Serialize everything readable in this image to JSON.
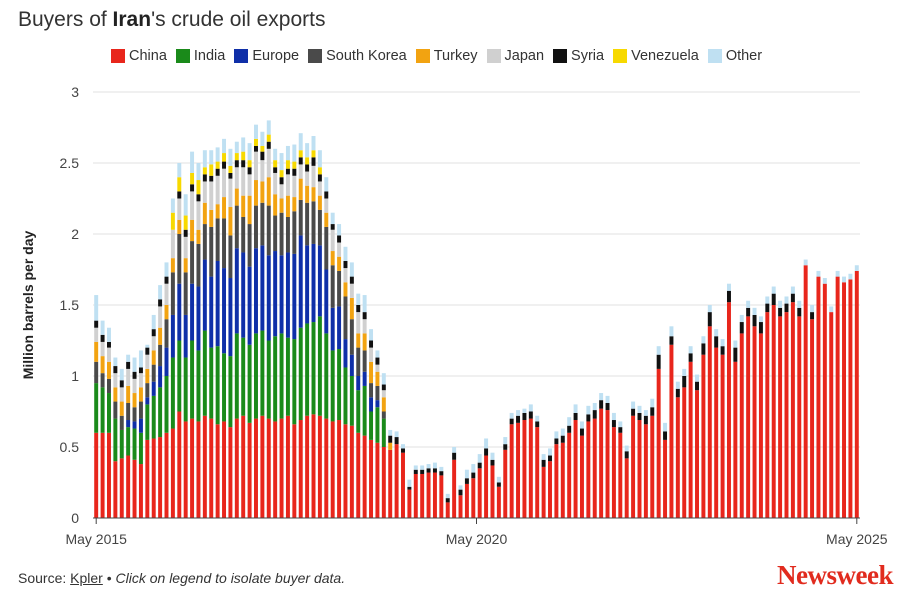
{
  "title": {
    "prefix": "Buyers of ",
    "bold": "Iran",
    "suffix": "'s crude oil exports"
  },
  "footer": {
    "source_label": "Source: ",
    "source_link": "Kpler",
    "bullet": " • ",
    "note": "Click on legend to isolate buyer data."
  },
  "brand": "Newsweek",
  "chart_data": {
    "type": "bar",
    "stacked": true,
    "xlabel": "",
    "ylabel": "Million barrels per day",
    "ylim": [
      0,
      3
    ],
    "yticks": [
      "0",
      "0.5",
      "1",
      "1.5",
      "2",
      "2.5",
      "3"
    ],
    "xtick_labels": [
      "May 2015",
      "May 2020",
      "May 2025"
    ],
    "x_start": "2015-05",
    "x_end": "2025-05",
    "grid": true,
    "legend_position": "top",
    "series": [
      {
        "name": "China",
        "color": "#e8261c",
        "values": [
          0.6,
          0.6,
          0.6,
          0.4,
          0.42,
          0.44,
          0.41,
          0.38,
          0.55,
          0.56,
          0.57,
          0.6,
          0.63,
          0.75,
          0.68,
          0.7,
          0.68,
          0.72,
          0.7,
          0.66,
          0.68,
          0.64,
          0.7,
          0.72,
          0.67,
          0.7,
          0.72,
          0.7,
          0.68,
          0.7,
          0.72,
          0.66,
          0.69,
          0.72,
          0.73,
          0.72,
          0.7,
          0.68,
          0.69,
          0.66,
          0.65,
          0.6,
          0.58,
          0.55,
          0.53,
          0.5,
          0.48,
          0.52,
          0.46,
          0.2,
          0.31,
          0.31,
          0.32,
          0.32,
          0.3,
          0.11,
          0.41,
          0.16,
          0.24,
          0.28,
          0.35,
          0.44,
          0.37,
          0.22,
          0.48,
          0.66,
          0.67,
          0.69,
          0.7,
          0.64,
          0.36,
          0.4,
          0.52,
          0.53,
          0.6,
          0.69,
          0.58,
          0.68,
          0.7,
          0.77,
          0.76,
          0.64,
          0.6,
          0.42,
          0.72,
          0.69,
          0.66,
          0.72,
          1.05,
          0.55,
          1.22,
          0.85,
          0.92,
          1.1,
          0.9,
          1.15,
          1.35,
          1.2,
          1.15,
          1.52,
          1.1,
          1.3,
          1.42,
          1.35,
          1.3,
          1.45,
          1.5,
          1.42,
          1.45,
          1.52,
          1.42,
          1.78,
          1.4,
          1.7,
          1.65,
          1.45,
          1.7,
          1.66,
          1.68,
          1.74
        ]
      },
      {
        "name": "India",
        "color": "#1a8a1a",
        "values": [
          0.35,
          0.32,
          0.28,
          0.3,
          0.2,
          0.2,
          0.22,
          0.22,
          0.25,
          0.3,
          0.35,
          0.4,
          0.5,
          0.5,
          0.45,
          0.55,
          0.5,
          0.6,
          0.5,
          0.55,
          0.48,
          0.5,
          0.6,
          0.55,
          0.55,
          0.6,
          0.6,
          0.55,
          0.6,
          0.6,
          0.55,
          0.6,
          0.65,
          0.65,
          0.65,
          0.7,
          0.6,
          0.5,
          0.5,
          0.4,
          0.35,
          0.3,
          0.35,
          0.2,
          0.25,
          0.2,
          0,
          0,
          0,
          0,
          0,
          0,
          0,
          0,
          0,
          0,
          0,
          0,
          0,
          0,
          0,
          0,
          0,
          0,
          0,
          0,
          0,
          0,
          0,
          0,
          0,
          0,
          0,
          0,
          0,
          0,
          0,
          0,
          0,
          0,
          0,
          0,
          0,
          0,
          0,
          0,
          0,
          0,
          0,
          0,
          0,
          0,
          0,
          0,
          0,
          0,
          0,
          0,
          0,
          0,
          0,
          0,
          0,
          0,
          0,
          0,
          0,
          0,
          0,
          0,
          0,
          0,
          0,
          0,
          0,
          0,
          0,
          0,
          0,
          0
        ]
      },
      {
        "name": "Europe",
        "color": "#0f2fa8",
        "values": [
          0,
          0,
          0,
          0,
          0,
          0.05,
          0.05,
          0.1,
          0.05,
          0.1,
          0.15,
          0.2,
          0.3,
          0.4,
          0.3,
          0.4,
          0.45,
          0.5,
          0.5,
          0.6,
          0.6,
          0.55,
          0.6,
          0.6,
          0.55,
          0.6,
          0.6,
          0.6,
          0.6,
          0.55,
          0.6,
          0.6,
          0.65,
          0.55,
          0.55,
          0.5,
          0.45,
          0.3,
          0.3,
          0.2,
          0.15,
          0.1,
          0.1,
          0.1,
          0.05,
          0,
          0,
          0,
          0,
          0,
          0,
          0,
          0,
          0,
          0,
          0,
          0,
          0,
          0,
          0,
          0,
          0,
          0,
          0,
          0,
          0,
          0,
          0,
          0,
          0,
          0,
          0,
          0,
          0,
          0,
          0,
          0,
          0,
          0,
          0,
          0,
          0,
          0,
          0,
          0,
          0,
          0,
          0,
          0,
          0,
          0,
          0,
          0,
          0,
          0,
          0,
          0,
          0,
          0,
          0,
          0,
          0,
          0,
          0,
          0,
          0,
          0,
          0,
          0,
          0,
          0,
          0,
          0,
          0,
          0,
          0,
          0,
          0,
          0,
          0
        ]
      },
      {
        "name": "South Korea",
        "color": "#4a4a4a",
        "values": [
          0.15,
          0.1,
          0.1,
          0.12,
          0.1,
          0.12,
          0.1,
          0.12,
          0.1,
          0.12,
          0.15,
          0.2,
          0.3,
          0.35,
          0.3,
          0.3,
          0.3,
          0.25,
          0.35,
          0.3,
          0.35,
          0.3,
          0.3,
          0.25,
          0.3,
          0.3,
          0.3,
          0.35,
          0.25,
          0.3,
          0.25,
          0.3,
          0.25,
          0.3,
          0.3,
          0.25,
          0.3,
          0.3,
          0.25,
          0.3,
          0.25,
          0.2,
          0.15,
          0.1,
          0.1,
          0.05,
          0,
          0,
          0,
          0,
          0,
          0,
          0,
          0,
          0,
          0,
          0,
          0,
          0,
          0,
          0,
          0,
          0,
          0,
          0,
          0,
          0,
          0,
          0,
          0,
          0,
          0,
          0,
          0,
          0,
          0,
          0,
          0,
          0,
          0,
          0,
          0,
          0,
          0,
          0,
          0,
          0,
          0,
          0,
          0,
          0,
          0,
          0,
          0,
          0,
          0,
          0,
          0,
          0,
          0,
          0,
          0,
          0,
          0,
          0,
          0,
          0,
          0,
          0,
          0,
          0,
          0,
          0,
          0,
          0,
          0,
          0,
          0,
          0,
          0
        ]
      },
      {
        "name": "Turkey",
        "color": "#f2a311",
        "values": [
          0.14,
          0.12,
          0.12,
          0.1,
          0.1,
          0.12,
          0.1,
          0.1,
          0.1,
          0.1,
          0.12,
          0.1,
          0.1,
          0.1,
          0.1,
          0.15,
          0.1,
          0.15,
          0.12,
          0.1,
          0.15,
          0.2,
          0.12,
          0.15,
          0.2,
          0.18,
          0.15,
          0.2,
          0.15,
          0.1,
          0.15,
          0.1,
          0.15,
          0.12,
          0.1,
          0.1,
          0.1,
          0.1,
          0.1,
          0.1,
          0.15,
          0.1,
          0.12,
          0.15,
          0.1,
          0.1,
          0.05,
          0,
          0,
          0,
          0,
          0,
          0,
          0,
          0,
          0,
          0,
          0,
          0,
          0,
          0,
          0,
          0,
          0,
          0,
          0,
          0,
          0,
          0,
          0,
          0,
          0,
          0,
          0,
          0,
          0,
          0,
          0,
          0,
          0,
          0,
          0,
          0,
          0,
          0,
          0,
          0,
          0,
          0,
          0,
          0,
          0,
          0,
          0,
          0,
          0,
          0,
          0,
          0,
          0,
          0,
          0,
          0,
          0,
          0,
          0,
          0,
          0,
          0,
          0,
          0,
          0,
          0,
          0,
          0,
          0,
          0,
          0,
          0,
          0,
          0,
          0
        ]
      },
      {
        "name": "Japan",
        "color": "#d0d0d0",
        "values": [
          0.1,
          0.1,
          0.1,
          0.1,
          0.1,
          0.12,
          0.1,
          0.1,
          0.1,
          0.1,
          0.15,
          0.15,
          0.2,
          0.15,
          0.15,
          0.2,
          0.2,
          0.15,
          0.2,
          0.2,
          0.2,
          0.2,
          0.15,
          0.2,
          0.15,
          0.2,
          0.15,
          0.2,
          0.15,
          0.1,
          0.15,
          0.15,
          0.1,
          0.1,
          0.15,
          0.1,
          0.1,
          0.15,
          0.1,
          0.1,
          0.1,
          0.15,
          0.1,
          0.1,
          0.05,
          0.05,
          0,
          0,
          0,
          0,
          0,
          0,
          0,
          0,
          0,
          0,
          0,
          0,
          0,
          0,
          0,
          0,
          0,
          0,
          0,
          0,
          0,
          0,
          0,
          0,
          0,
          0,
          0,
          0,
          0,
          0,
          0,
          0,
          0,
          0,
          0,
          0,
          0,
          0,
          0,
          0,
          0,
          0,
          0,
          0,
          0,
          0,
          0,
          0,
          0,
          0,
          0,
          0,
          0,
          0,
          0,
          0,
          0,
          0,
          0,
          0,
          0,
          0,
          0,
          0,
          0,
          0,
          0,
          0,
          0,
          0,
          0,
          0,
          0,
          0
        ]
      },
      {
        "name": "Syria",
        "color": "#111111",
        "values": [
          0.05,
          0.05,
          0.04,
          0.05,
          0.05,
          0.05,
          0.05,
          0.04,
          0.05,
          0.05,
          0.05,
          0.05,
          0,
          0.05,
          0.05,
          0.05,
          0.05,
          0.05,
          0.04,
          0.05,
          0.05,
          0.04,
          0.05,
          0.05,
          0.05,
          0.04,
          0.06,
          0.05,
          0.04,
          0.05,
          0.04,
          0.05,
          0.05,
          0.05,
          0.06,
          0.05,
          0.05,
          0.04,
          0.05,
          0.05,
          0.05,
          0.05,
          0.05,
          0.05,
          0.05,
          0.04,
          0.05,
          0.05,
          0.03,
          0.02,
          0.03,
          0.03,
          0.03,
          0.03,
          0.03,
          0.03,
          0.05,
          0.04,
          0.04,
          0.04,
          0.04,
          0.05,
          0.04,
          0.03,
          0.04,
          0.04,
          0.05,
          0.05,
          0.05,
          0.04,
          0.05,
          0.04,
          0.04,
          0.05,
          0.05,
          0.05,
          0.05,
          0.05,
          0.06,
          0.06,
          0.05,
          0.05,
          0.04,
          0.05,
          0.05,
          0.05,
          0.06,
          0.06,
          0.1,
          0.06,
          0.06,
          0.06,
          0.08,
          0.06,
          0.06,
          0.08,
          0.1,
          0.08,
          0.06,
          0.08,
          0.1,
          0.08,
          0.06,
          0.08,
          0.08,
          0.06,
          0.08,
          0.06,
          0.06,
          0.06,
          0.06,
          0,
          0.05,
          0,
          0,
          0,
          0,
          0,
          0,
          0
        ]
      },
      {
        "name": "Venezuela",
        "color": "#f7d900",
        "values": [
          0,
          0,
          0,
          0,
          0,
          0,
          0,
          0,
          0,
          0,
          0,
          0,
          0.12,
          0.1,
          0.1,
          0.08,
          0.1,
          0.05,
          0.08,
          0.05,
          0.06,
          0.05,
          0.05,
          0.06,
          0.05,
          0.05,
          0.04,
          0.05,
          0.05,
          0.05,
          0.06,
          0.05,
          0.05,
          0.05,
          0.05,
          0.05,
          0,
          0,
          0,
          0,
          0,
          0,
          0,
          0,
          0,
          0,
          0,
          0,
          0,
          0,
          0,
          0,
          0,
          0,
          0,
          0,
          0,
          0,
          0,
          0,
          0,
          0,
          0,
          0,
          0,
          0,
          0,
          0,
          0,
          0,
          0,
          0,
          0,
          0,
          0,
          0,
          0,
          0,
          0,
          0,
          0,
          0,
          0,
          0,
          0,
          0,
          0,
          0,
          0,
          0,
          0,
          0,
          0,
          0,
          0,
          0,
          0,
          0,
          0,
          0,
          0,
          0,
          0,
          0,
          0,
          0,
          0,
          0,
          0,
          0,
          0,
          0,
          0,
          0,
          0,
          0,
          0,
          0,
          0,
          0
        ]
      },
      {
        "name": "Other",
        "color": "#bfe0f2",
        "values": [
          0.18,
          0.1,
          0.1,
          0.06,
          0.08,
          0.05,
          0.1,
          0.12,
          0.02,
          0.1,
          0.1,
          0.1,
          0.1,
          0.1,
          0.15,
          0.15,
          0.12,
          0.12,
          0.1,
          0.1,
          0.1,
          0.12,
          0.08,
          0.1,
          0.12,
          0.1,
          0.1,
          0.1,
          0.08,
          0.12,
          0.1,
          0.12,
          0.12,
          0.1,
          0.1,
          0.12,
          0.1,
          0.08,
          0.08,
          0.1,
          0.1,
          0.08,
          0.12,
          0.08,
          0.05,
          0.08,
          0.04,
          0.04,
          0.03,
          0.05,
          0.03,
          0.03,
          0.03,
          0.04,
          0.03,
          0.03,
          0.04,
          0.03,
          0.06,
          0.06,
          0.06,
          0.07,
          0.05,
          0.04,
          0.05,
          0.04,
          0.04,
          0.03,
          0.05,
          0.04,
          0.04,
          0.05,
          0.05,
          0.05,
          0.06,
          0.06,
          0.05,
          0.06,
          0.05,
          0.05,
          0.05,
          0.05,
          0.04,
          0.04,
          0.05,
          0.05,
          0.04,
          0.06,
          0.06,
          0.06,
          0.07,
          0.05,
          0.05,
          0.05,
          0.05,
          0.05,
          0.05,
          0.05,
          0.05,
          0.05,
          0.05,
          0.05,
          0.05,
          0.05,
          0.04,
          0.05,
          0.05,
          0.05,
          0.05,
          0.05,
          0.05,
          0.04,
          0.05,
          0.04,
          0.04,
          0.04,
          0.04,
          0.04,
          0.04,
          0.04
        ]
      }
    ]
  }
}
